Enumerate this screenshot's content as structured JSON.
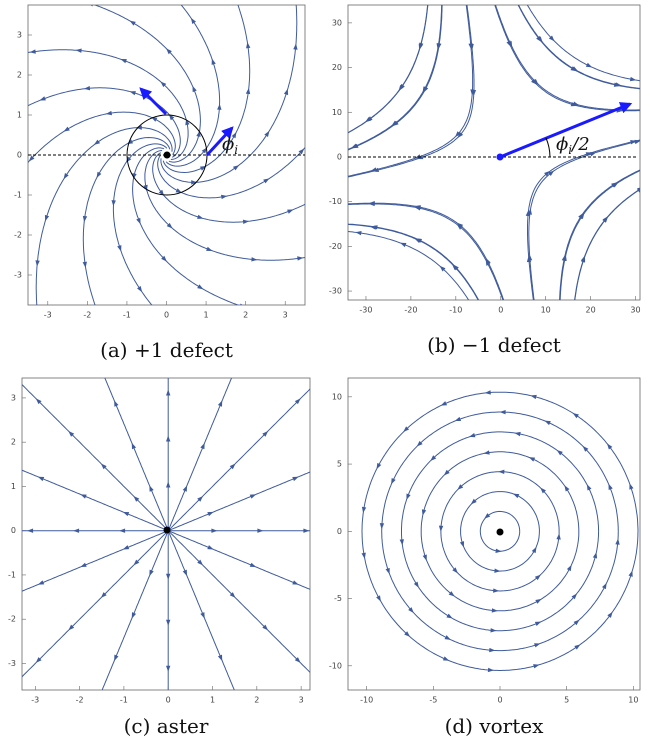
{
  "chart_data": [
    {
      "type": "spiral",
      "caption": "(a) +1 defect",
      "color": "#3f5b9c",
      "annotation": {
        "base": "ϕ",
        "sub": "i"
      },
      "xlim": [
        -3.5,
        3.5
      ],
      "ylim": [
        -3.75,
        3.75
      ],
      "xticks": [
        -3,
        -2,
        -1,
        0,
        1,
        2,
        3
      ],
      "yticks": [
        -3,
        -2,
        -1,
        0,
        1,
        2,
        3
      ]
    },
    {
      "type": "saddle",
      "caption": "(b) −1 defect",
      "color": "#3f5b9c",
      "annotation": {
        "base": "ϕ",
        "sub": "i",
        "rest": "/2"
      },
      "xlim": [
        -34,
        31
      ],
      "ylim": [
        -32,
        34
      ],
      "xticks": [
        -30,
        -20,
        -10,
        0,
        10,
        20,
        30
      ],
      "yticks": [
        -30,
        -20,
        -10,
        0,
        10,
        20,
        30
      ]
    },
    {
      "type": "radial",
      "caption": "(c) aster",
      "color": "#3f5b9c",
      "xlim": [
        -3.3,
        3.2
      ],
      "ylim": [
        -3.6,
        3.45
      ],
      "xticks": [
        -3,
        -2,
        -1,
        0,
        1,
        2,
        3
      ],
      "yticks": [
        -3,
        -2,
        -1,
        0,
        1,
        2,
        3
      ]
    },
    {
      "type": "circular",
      "caption": "(d) vortex",
      "color": "#3f5b9c",
      "xlim": [
        -11.4,
        10.5
      ],
      "ylim": [
        -11.8,
        11.4
      ],
      "xticks": [
        -10,
        -5,
        0,
        5,
        10
      ],
      "yticks": [
        -10,
        -5,
        0,
        5,
        10
      ]
    }
  ]
}
